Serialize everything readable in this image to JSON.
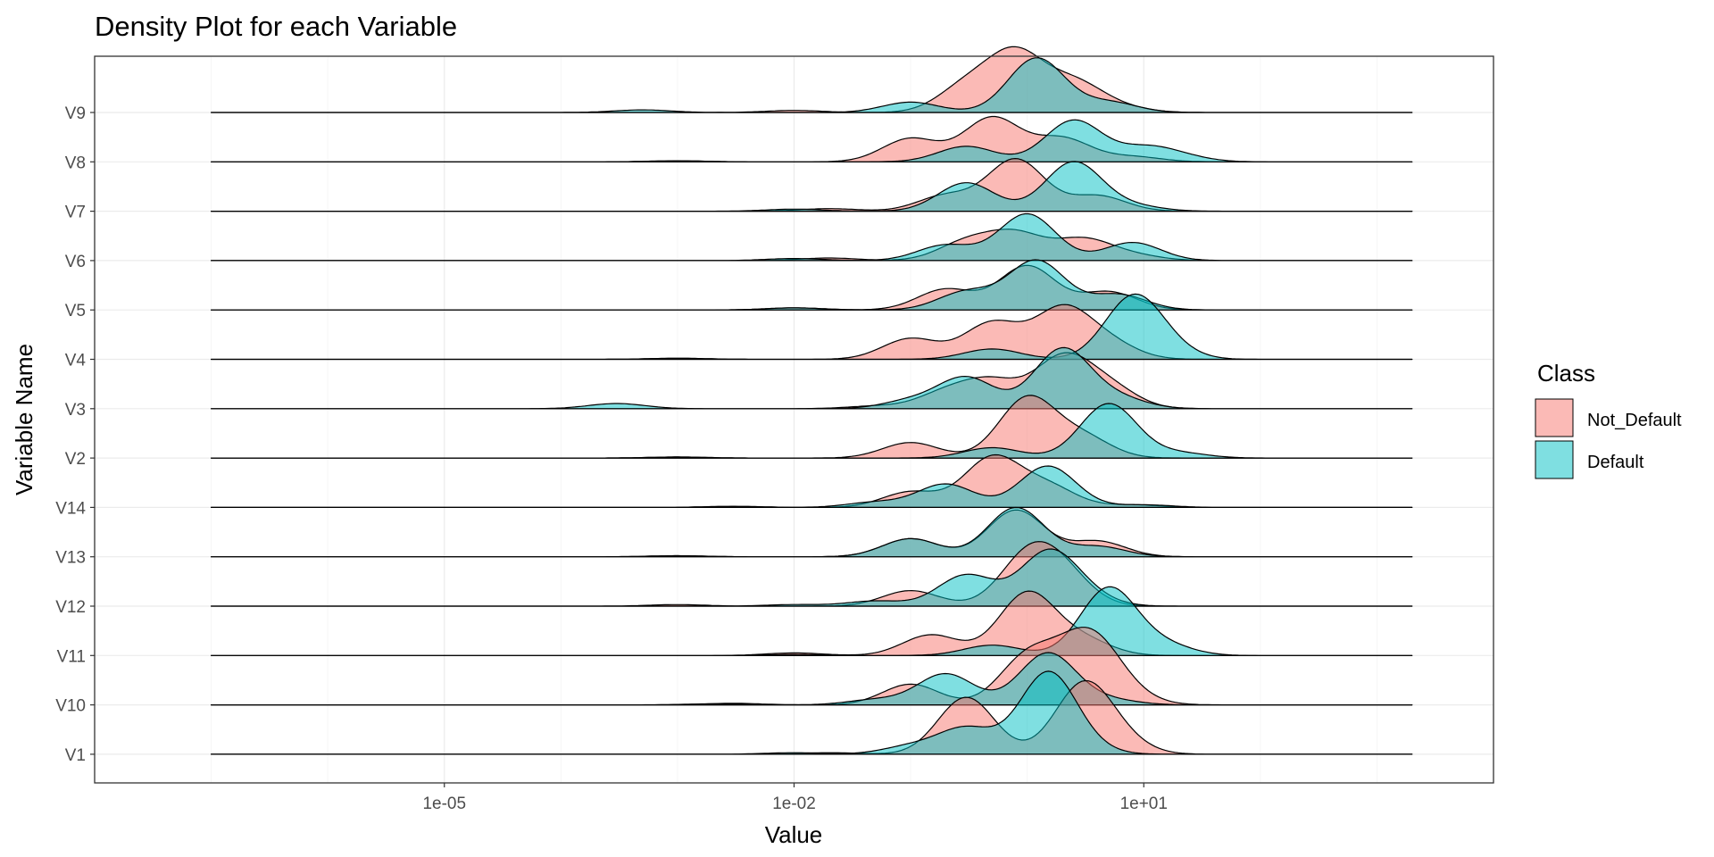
{
  "colors": {
    "Not_Default": "#F8766D",
    "Default": "#00BFC4",
    "panel_border": "#333333",
    "grid_major": "#ebebeb",
    "grid_minor": "#f5f5f5",
    "tick_text": "#4d4d4d"
  },
  "chart_data": {
    "type": "area",
    "subtype": "ridgeline-density",
    "title": "Density Plot for each Variable",
    "xlabel": "Value",
    "ylabel": "Variable Name",
    "x_scale": "log10",
    "xlim": [
      1e-08,
      10000
    ],
    "x_ticks": [
      1e-05,
      0.01,
      10
    ],
    "x_tick_labels": [
      "1e-05",
      "1e-02",
      "1e+01"
    ],
    "line_from": 1e-07,
    "line_to": 2000,
    "grid": true,
    "legend": {
      "title": "Class",
      "position": "right",
      "entries": [
        "Not_Default",
        "Default"
      ]
    },
    "rows": [
      "V1",
      "V10",
      "V11",
      "V12",
      "V13",
      "V14",
      "V2",
      "V3",
      "V4",
      "V5",
      "V6",
      "V7",
      "V8",
      "V9"
    ],
    "series": [
      {
        "name": "Not_Default",
        "ridges": {
          "V1": [
            [
              0.02,
              0.03
            ],
            [
              0.3,
              1.1
            ],
            [
              3,
              1.3
            ],
            [
              6,
              0.25
            ]
          ],
          "V10": [
            [
              0.003,
              0.03
            ],
            [
              0.1,
              0.4
            ],
            [
              1,
              0.9
            ],
            [
              2.5,
              0.6
            ],
            [
              4,
              0.9
            ],
            [
              8,
              0.1
            ]
          ],
          "V11": [
            [
              0.01,
              0.05
            ],
            [
              0.15,
              0.4
            ],
            [
              1,
              1.2
            ],
            [
              3,
              0.3
            ]
          ],
          "V12": [
            [
              0.001,
              0.03
            ],
            [
              0.1,
              0.3
            ],
            [
              1,
              0.9
            ],
            [
              2,
              0.6
            ]
          ],
          "V13": [
            [
              0.001,
              0.02
            ],
            [
              0.1,
              0.35
            ],
            [
              0.8,
              0.9
            ],
            [
              4,
              0.3
            ]
          ],
          "V14": [
            [
              0.003,
              0.02
            ],
            [
              0.1,
              0.3
            ],
            [
              0.5,
              0.95
            ],
            [
              1.5,
              0.4
            ],
            [
              8,
              0.05
            ]
          ],
          "V2": [
            [
              0.001,
              0.02
            ],
            [
              0.1,
              0.3
            ],
            [
              1,
              1.15
            ],
            [
              3,
              0.4
            ]
          ],
          "V3": [
            [
              0.05,
              0.05
            ],
            [
              0.2,
              0.3
            ],
            [
              0.5,
              0.5
            ],
            [
              2,
              0.95
            ],
            [
              5,
              0.4
            ]
          ],
          "V4": [
            [
              0.001,
              0.02
            ],
            [
              0.1,
              0.4
            ],
            [
              0.5,
              0.7
            ],
            [
              2,
              0.95
            ],
            [
              5,
              0.3
            ]
          ],
          "V5": [
            [
              0.01,
              0.04
            ],
            [
              0.2,
              0.4
            ],
            [
              1,
              0.85
            ],
            [
              5,
              0.35
            ]
          ],
          "V6": [
            [
              0.02,
              0.05
            ],
            [
              0.3,
              0.35
            ],
            [
              0.8,
              0.5
            ],
            [
              3,
              0.4
            ],
            [
              8,
              0.1
            ]
          ],
          "V7": [
            [
              0.02,
              0.05
            ],
            [
              0.2,
              0.3
            ],
            [
              0.8,
              1.0
            ],
            [
              4,
              0.3
            ]
          ],
          "V8": [
            [
              0.001,
              0.02
            ],
            [
              0.1,
              0.45
            ],
            [
              0.5,
              0.85
            ],
            [
              2,
              0.45
            ],
            [
              8,
              0.1
            ]
          ],
          "V9": [
            [
              0.01,
              0.04
            ],
            [
              0.3,
              0.5
            ],
            [
              0.8,
              1.1
            ],
            [
              2.5,
              0.55
            ],
            [
              6,
              0.1
            ]
          ]
        }
      },
      {
        "name": "Default",
        "ridges": {
          "V1": [
            [
              0.01,
              0.03
            ],
            [
              0.1,
              0.15
            ],
            [
              0.3,
              0.5
            ],
            [
              1.5,
              1.55
            ],
            [
              3,
              0.1
            ]
          ],
          "V10": [
            [
              0.002,
              0.02
            ],
            [
              0.05,
              0.1
            ],
            [
              0.2,
              0.6
            ],
            [
              1.5,
              1.0
            ],
            [
              5,
              0.1
            ]
          ],
          "V11": [
            [
              0.01,
              0.02
            ],
            [
              0.5,
              0.2
            ],
            [
              5,
              1.3
            ],
            [
              15,
              0.2
            ]
          ],
          "V12": [
            [
              0.01,
              0.03
            ],
            [
              0.05,
              0.1
            ],
            [
              0.3,
              0.6
            ],
            [
              1.5,
              1.0
            ],
            [
              3,
              0.2
            ]
          ],
          "V13": [
            [
              0.001,
              0.02
            ],
            [
              0.1,
              0.35
            ],
            [
              0.8,
              0.95
            ],
            [
              4,
              0.2
            ]
          ],
          "V14": [
            [
              0.003,
              0.02
            ],
            [
              0.05,
              0.1
            ],
            [
              0.2,
              0.45
            ],
            [
              1.5,
              0.8
            ],
            [
              10,
              0.05
            ]
          ],
          "V2": [
            [
              0.001,
              0.02
            ],
            [
              0.5,
              0.2
            ],
            [
              5,
              1.05
            ],
            [
              20,
              0.1
            ]
          ],
          "V3": [
            [
              0.0003,
              0.1
            ],
            [
              0.1,
              0.15
            ],
            [
              0.3,
              0.6
            ],
            [
              2,
              1.15
            ],
            [
              6,
              0.2
            ]
          ],
          "V4": [
            [
              0.001,
              0.02
            ],
            [
              0.5,
              0.2
            ],
            [
              8,
              1.15
            ],
            [
              15,
              0.2
            ]
          ],
          "V5": [
            [
              0.01,
              0.04
            ],
            [
              0.3,
              0.35
            ],
            [
              1.2,
              0.95
            ],
            [
              6,
              0.3
            ]
          ],
          "V6": [
            [
              0.01,
              0.04
            ],
            [
              0.2,
              0.3
            ],
            [
              1,
              0.9
            ],
            [
              8,
              0.35
            ]
          ],
          "V7": [
            [
              0.01,
              0.04
            ],
            [
              0.3,
              0.55
            ],
            [
              2.5,
              0.95
            ],
            [
              8,
              0.1
            ]
          ],
          "V8": [
            [
              0.001,
              0.02
            ],
            [
              0.3,
              0.3
            ],
            [
              2.5,
              0.8
            ],
            [
              10,
              0.25
            ],
            [
              20,
              0.1
            ]
          ],
          "V9": [
            [
              0.0005,
              0.05
            ],
            [
              0.1,
              0.2
            ],
            [
              1.2,
              1.05
            ],
            [
              5,
              0.2
            ]
          ]
        }
      }
    ]
  }
}
